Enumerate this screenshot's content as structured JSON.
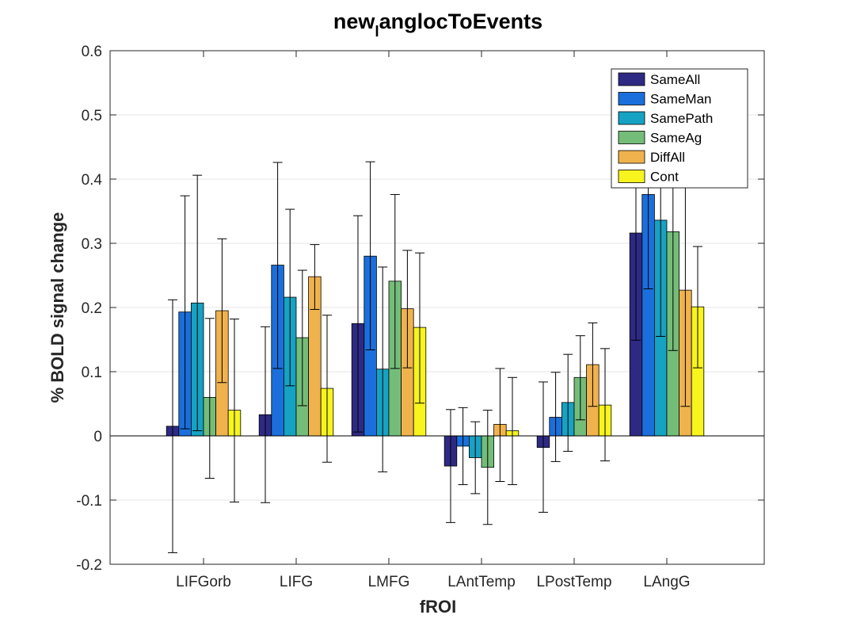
{
  "chart_data": {
    "type": "bar",
    "title_main": "new",
    "title_sub": "l",
    "title_rest": "anglocToEvents",
    "xlabel": "fROI",
    "ylabel": "% BOLD signal change",
    "ylim": [
      -0.2,
      0.6
    ],
    "yticks": [
      -0.2,
      -0.1,
      0,
      0.1,
      0.2,
      0.3,
      0.4,
      0.5,
      0.6
    ],
    "ytick_labels": [
      "-0.2",
      "-0.1",
      "0",
      "0.1",
      "0.2",
      "0.3",
      "0.4",
      "0.5",
      "0.6"
    ],
    "grid": true,
    "legend_position": "top-right",
    "categories": [
      "LIFGorb",
      "LIFG",
      "LMFG",
      "LAntTemp",
      "LPostTemp",
      "LAngG"
    ],
    "series": [
      {
        "name": "SameAll",
        "color": "#2e2a84",
        "values": [
          0.015,
          0.033,
          0.175,
          -0.047,
          -0.018,
          0.316
        ],
        "err_low": [
          -0.182,
          -0.104,
          0.006,
          -0.135,
          -0.119,
          0.149
        ],
        "err_high": [
          0.212,
          0.17,
          0.343,
          0.041,
          0.084,
          0.48
        ]
      },
      {
        "name": "SameMan",
        "color": "#1a6fdc",
        "values": [
          0.193,
          0.266,
          0.28,
          -0.016,
          0.029,
          0.376
        ],
        "err_low": [
          0.011,
          0.105,
          0.134,
          -0.076,
          -0.04,
          0.229
        ],
        "err_high": [
          0.374,
          0.426,
          0.427,
          0.044,
          0.099,
          0.52
        ]
      },
      {
        "name": "SamePath",
        "color": "#16a2c3",
        "values": [
          0.207,
          0.216,
          0.104,
          -0.034,
          0.052,
          0.336
        ],
        "err_low": [
          0.008,
          0.078,
          -0.056,
          -0.09,
          -0.024,
          0.155
        ],
        "err_high": [
          0.406,
          0.353,
          0.263,
          0.022,
          0.127,
          0.52
        ]
      },
      {
        "name": "SameAg",
        "color": "#74bd79",
        "values": [
          0.06,
          0.153,
          0.241,
          -0.049,
          0.091,
          0.318
        ],
        "err_low": [
          -0.066,
          0.047,
          0.105,
          -0.138,
          0.025,
          0.133
        ],
        "err_high": [
          0.183,
          0.258,
          0.376,
          0.04,
          0.156,
          0.5
        ]
      },
      {
        "name": "DiffAll",
        "color": "#f0b24d",
        "values": [
          0.195,
          0.248,
          0.198,
          0.018,
          0.111,
          0.227
        ],
        "err_low": [
          0.083,
          0.197,
          0.106,
          -0.071,
          0.046,
          0.046
        ],
        "err_high": [
          0.307,
          0.298,
          0.289,
          0.105,
          0.176,
          0.41
        ]
      },
      {
        "name": "Cont",
        "color": "#f7f41e",
        "values": [
          0.04,
          0.074,
          0.169,
          0.008,
          0.048,
          0.201
        ],
        "err_low": [
          -0.103,
          -0.041,
          0.051,
          -0.076,
          -0.039,
          0.106
        ],
        "err_high": [
          0.182,
          0.188,
          0.285,
          0.091,
          0.136,
          0.295
        ]
      }
    ]
  }
}
